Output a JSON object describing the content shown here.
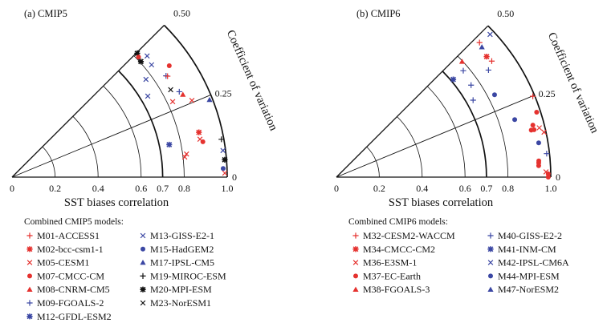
{
  "colors": {
    "red": "#e5322f",
    "blue": "#3b47a3",
    "black": "#111111"
  },
  "chart_data": [
    {
      "type": "scatter",
      "title": "(a) CMIP5",
      "xlabel": "SST biases correlation",
      "ylabel": "Coefficient of variation",
      "coordinate_system": "polar (radius = correlation, angle = coefficient of variation)",
      "r_range": [
        0,
        1.0
      ],
      "r_ticks": [
        "0",
        "0.2",
        "0.4",
        "0.6",
        "0.7",
        "0.8",
        "1.0"
      ],
      "r_arcs": [
        0.2,
        0.4,
        0.6,
        0.7,
        0.8,
        1.0
      ],
      "r_bold_arcs": [
        0.7,
        1.0
      ],
      "cv_range": [
        0,
        0.5
      ],
      "cv_ticks": [
        "0",
        "0.25",
        "0.50"
      ],
      "legend_title": "Combined CMIP5 models:",
      "legend": [
        {
          "id": "M01",
          "label": "M01-ACCESS1",
          "marker": "plus",
          "color": "red"
        },
        {
          "id": "M02",
          "label": "M02-bcc-csm1-1",
          "marker": "star",
          "color": "red"
        },
        {
          "id": "M05",
          "label": "M05-CESM1",
          "marker": "x",
          "color": "red"
        },
        {
          "id": "M07",
          "label": "M07-CMCC-CM",
          "marker": "circle",
          "color": "red"
        },
        {
          "id": "M08",
          "label": "M08-CNRM-CM5",
          "marker": "triangle",
          "color": "red"
        },
        {
          "id": "M09",
          "label": "M09-FGOALS-2",
          "marker": "plus",
          "color": "blue"
        },
        {
          "id": "M12",
          "label": "M12-GFDL-ESM2",
          "marker": "star",
          "color": "blue"
        },
        {
          "id": "M13",
          "label": "M13-GISS-E2-1",
          "marker": "x",
          "color": "blue"
        },
        {
          "id": "M15",
          "label": "M15-HadGEM2",
          "marker": "circle",
          "color": "blue"
        },
        {
          "id": "M17",
          "label": "M17-IPSL-CM5",
          "marker": "triangle",
          "color": "blue"
        },
        {
          "id": "M19",
          "label": "M19-MIROC-ESM",
          "marker": "plus",
          "color": "black"
        },
        {
          "id": "M20",
          "label": "M20-MPI-ESM",
          "marker": "star",
          "color": "black"
        },
        {
          "id": "M23",
          "label": "M23-NorESM1",
          "marker": "x",
          "color": "black"
        }
      ],
      "points": [
        {
          "model": "M20",
          "r": 0.819,
          "cv": 0.497
        },
        {
          "model": "M07",
          "r": 0.811,
          "cv": 0.484
        },
        {
          "model": "M20",
          "r": 0.805,
          "cv": 0.466
        },
        {
          "model": "M13",
          "r": 0.844,
          "cv": 0.466
        },
        {
          "model": "M13",
          "r": 0.833,
          "cv": 0.432
        },
        {
          "model": "M07",
          "r": 0.896,
          "cv": 0.393
        },
        {
          "model": "M13",
          "r": 0.771,
          "cv": 0.402
        },
        {
          "model": "M09",
          "r": 0.857,
          "cv": 0.371
        },
        {
          "model": "M01",
          "r": 0.862,
          "cv": 0.367
        },
        {
          "model": "M23",
          "r": 0.842,
          "cv": 0.321
        },
        {
          "model": "M09",
          "r": 0.873,
          "cv": 0.301
        },
        {
          "model": "M08",
          "r": 0.882,
          "cv": 0.287
        },
        {
          "model": "M13",
          "r": 0.735,
          "cv": 0.343
        },
        {
          "model": "M05",
          "r": 0.825,
          "cv": 0.28
        },
        {
          "model": "M05",
          "r": 0.909,
          "cv": 0.257
        },
        {
          "model": "M17",
          "r": 0.986,
          "cv": 0.238
        },
        {
          "model": "M02",
          "r": 0.893,
          "cv": 0.15
        },
        {
          "model": "M05",
          "r": 0.891,
          "cv": 0.127
        },
        {
          "model": "M07",
          "r": 0.902,
          "cv": 0.117
        },
        {
          "model": "M12",
          "r": 0.746,
          "cv": 0.13
        },
        {
          "model": "M05",
          "r": 0.818,
          "cv": 0.084
        },
        {
          "model": "M05",
          "r": 0.808,
          "cv": 0.074
        },
        {
          "model": "M19",
          "r": 0.989,
          "cv": 0.114
        },
        {
          "model": "M13",
          "r": 0.988,
          "cv": 0.08
        },
        {
          "model": "M20",
          "r": 0.992,
          "cv": 0.052
        },
        {
          "model": "M15",
          "r": 0.982,
          "cv": 0.026
        },
        {
          "model": "M05",
          "r": 0.989,
          "cv": 0.012
        }
      ]
    },
    {
      "type": "scatter",
      "title": "(b) CMIP6",
      "xlabel": "SST biases correlation",
      "ylabel": "Coefficient of variation",
      "coordinate_system": "polar (radius = correlation, angle = coefficient of variation)",
      "r_range": [
        0,
        1.0
      ],
      "r_ticks": [
        "0",
        "0.2",
        "0.4",
        "0.6",
        "0.7",
        "0.8",
        "1.0"
      ],
      "r_arcs": [
        0.2,
        0.4,
        0.6,
        0.7,
        0.8,
        1.0
      ],
      "r_bold_arcs": [
        0.7,
        1.0
      ],
      "cv_range": [
        0,
        0.5
      ],
      "cv_ticks": [
        "0",
        "0.25",
        "0.50"
      ],
      "legend_title": "Combined CMIP6 models:",
      "legend": [
        {
          "id": "M32",
          "label": "M32-CESM2-WACCM",
          "marker": "plus",
          "color": "red"
        },
        {
          "id": "M34",
          "label": "M34-CMCC-CM2",
          "marker": "star",
          "color": "red"
        },
        {
          "id": "M36",
          "label": "M36-E3SM-1",
          "marker": "x",
          "color": "red"
        },
        {
          "id": "M37",
          "label": "M37-EC-Earth",
          "marker": "circle",
          "color": "red"
        },
        {
          "id": "M38",
          "label": "M38-FGOALS-3",
          "marker": "triangle",
          "color": "red"
        },
        {
          "id": "M40",
          "label": "M40-GISS-E2-2",
          "marker": "plus",
          "color": "blue"
        },
        {
          "id": "M41",
          "label": "M41-INM-CM",
          "marker": "star",
          "color": "blue"
        },
        {
          "id": "M42",
          "label": "M42-IPSL-CM6A",
          "marker": "x",
          "color": "blue"
        },
        {
          "id": "M44",
          "label": "M44-MPI-ESM",
          "marker": "circle",
          "color": "blue"
        },
        {
          "id": "M47",
          "label": "M47-NorESM2",
          "marker": "triangle",
          "color": "blue"
        }
      ],
      "points": [
        {
          "model": "M42",
          "r": 0.979,
          "cv": 0.477
        },
        {
          "model": "M32",
          "r": 0.917,
          "cv": 0.481
        },
        {
          "model": "M47",
          "r": 0.911,
          "cv": 0.465
        },
        {
          "model": "M34",
          "r": 0.899,
          "cv": 0.431
        },
        {
          "model": "M32",
          "r": 0.905,
          "cv": 0.409
        },
        {
          "model": "M38",
          "r": 0.797,
          "cv": 0.474
        },
        {
          "model": "M40",
          "r": 0.773,
          "cv": 0.445
        },
        {
          "model": "M40",
          "r": 0.868,
          "cv": 0.391
        },
        {
          "model": "M41",
          "r": 0.711,
          "cv": 0.444
        },
        {
          "model": "M40",
          "r": 0.761,
          "cv": 0.382
        },
        {
          "model": "M44",
          "r": 0.832,
          "cv": 0.306
        },
        {
          "model": "M40",
          "r": 0.732,
          "cv": 0.327
        },
        {
          "model": "M32",
          "r": 0.991,
          "cv": 0.249
        },
        {
          "model": "M37",
          "r": 0.982,
          "cv": 0.2
        },
        {
          "model": "M44",
          "r": 0.874,
          "cv": 0.199
        },
        {
          "model": "M37",
          "r": 0.948,
          "cv": 0.165
        },
        {
          "model": "M37",
          "r": 0.935,
          "cv": 0.151
        },
        {
          "model": "M37",
          "r": 0.948,
          "cv": 0.15
        },
        {
          "model": "M36",
          "r": 0.974,
          "cv": 0.152
        },
        {
          "model": "M36",
          "r": 0.991,
          "cv": 0.136
        },
        {
          "model": "M44",
          "r": 0.957,
          "cv": 0.107
        },
        {
          "model": "M40",
          "r": 0.987,
          "cv": 0.071
        },
        {
          "model": "M37",
          "r": 0.947,
          "cv": 0.051
        },
        {
          "model": "M37",
          "r": 0.946,
          "cv": 0.045
        },
        {
          "model": "M37",
          "r": 0.945,
          "cv": 0.036
        },
        {
          "model": "M36",
          "r": 0.978,
          "cv": 0.016
        },
        {
          "model": "M37",
          "r": 0.988,
          "cv": 0.01
        },
        {
          "model": "M37",
          "r": 0.988,
          "cv": 0.0
        }
      ]
    }
  ]
}
